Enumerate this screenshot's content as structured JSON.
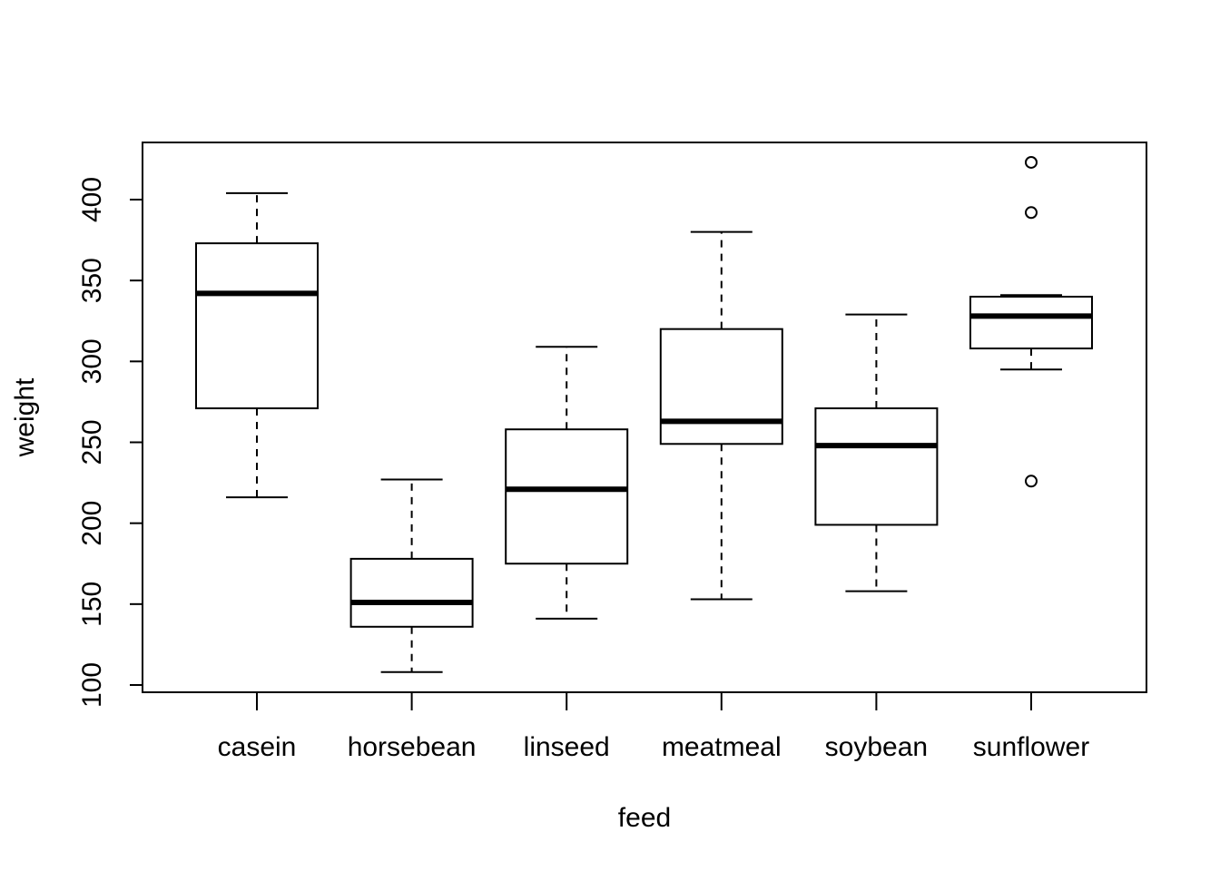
{
  "chart_data": {
    "type": "boxplot",
    "title": "",
    "xlabel": "feed",
    "ylabel": "weight",
    "categories": [
      "casein",
      "horsebean",
      "linseed",
      "meatmeal",
      "soybean",
      "sunflower"
    ],
    "ylim": [
      95,
      435
    ],
    "yticks": [
      100,
      150,
      200,
      250,
      300,
      350,
      400
    ],
    "boxes": [
      {
        "name": "casein",
        "whisker_low": 216,
        "q1": 271,
        "median": 342,
        "q3": 373,
        "whisker_high": 404,
        "outliers": []
      },
      {
        "name": "horsebean",
        "whisker_low": 108,
        "q1": 136,
        "median": 151,
        "q3": 178,
        "whisker_high": 227,
        "outliers": []
      },
      {
        "name": "linseed",
        "whisker_low": 141,
        "q1": 175,
        "median": 221,
        "q3": 258,
        "whisker_high": 309,
        "outliers": []
      },
      {
        "name": "meatmeal",
        "whisker_low": 153,
        "q1": 249,
        "median": 263,
        "q3": 320,
        "whisker_high": 380,
        "outliers": []
      },
      {
        "name": "soybean",
        "whisker_low": 158,
        "q1": 199,
        "median": 248,
        "q3": 271,
        "whisker_high": 329,
        "outliers": []
      },
      {
        "name": "sunflower",
        "whisker_low": 295,
        "q1": 308,
        "median": 328,
        "q3": 340,
        "whisker_high": 341,
        "outliers": [
          423,
          392,
          226
        ]
      }
    ]
  }
}
